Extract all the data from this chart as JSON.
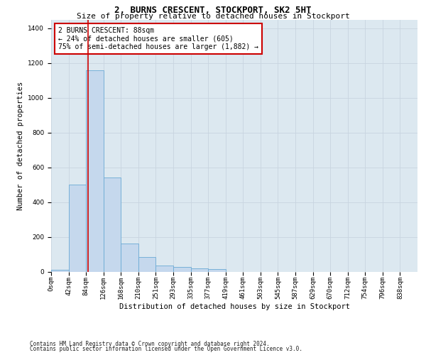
{
  "title1": "2, BURNS CRESCENT, STOCKPORT, SK2 5HT",
  "title2": "Size of property relative to detached houses in Stockport",
  "xlabel": "Distribution of detached houses by size in Stockport",
  "ylabel": "Number of detached properties",
  "bar_values": [
    10,
    500,
    1160,
    540,
    160,
    82,
    35,
    27,
    20,
    15,
    0,
    0,
    0,
    0,
    0,
    0,
    0,
    0,
    0,
    0,
    0
  ],
  "bar_labels": [
    "0sqm",
    "42sqm",
    "84sqm",
    "126sqm",
    "168sqm",
    "210sqm",
    "251sqm",
    "293sqm",
    "335sqm",
    "377sqm",
    "419sqm",
    "461sqm",
    "503sqm",
    "545sqm",
    "587sqm",
    "629sqm",
    "670sqm",
    "712sqm",
    "754sqm",
    "796sqm",
    "838sqm"
  ],
  "bar_color": "#c5d8ed",
  "bar_edge_color": "#6aaad4",
  "property_line_x": 2.1,
  "annotation_text": "2 BURNS CRESCENT: 88sqm\n← 24% of detached houses are smaller (605)\n75% of semi-detached houses are larger (1,882) →",
  "annotation_box_color": "#cc0000",
  "ylim": [
    0,
    1450
  ],
  "yticks": [
    0,
    200,
    400,
    600,
    800,
    1000,
    1200,
    1400
  ],
  "grid_color": "#c8d4e0",
  "bg_color": "#dce8f0",
  "footer1": "Contains HM Land Registry data © Crown copyright and database right 2024.",
  "footer2": "Contains public sector information licensed under the Open Government Licence v3.0.",
  "title_fontsize": 9,
  "subtitle_fontsize": 8,
  "axis_label_fontsize": 7.5,
  "tick_fontsize": 6.5,
  "footer_fontsize": 5.5
}
